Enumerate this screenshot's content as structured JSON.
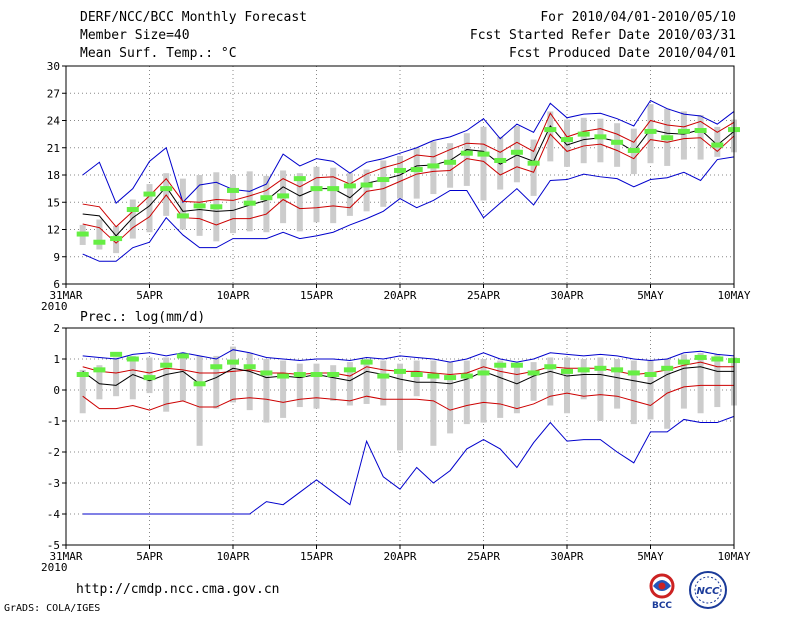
{
  "header": {
    "title": "DERF/NCC/BCC Monthly Forecast",
    "member_size": "Member Size=40",
    "variable": "Mean Surf. Temp.: °C",
    "period": "For 2010/04/01-2010/05/10",
    "started": "Fcst Started Refer Date 2010/03/31",
    "produced": "Fcst Produced Date 2010/04/01"
  },
  "footer": {
    "url": "http://cmdp.ncc.cma.gov.cn",
    "credit": "GrADS: COLA/IGES",
    "logo_left_text": "BCC",
    "logo_right_text": "NCC"
  },
  "colors": {
    "envelope_outer": "#0000cc",
    "envelope_inner": "#cc0000",
    "ensemble_mean": "#000000",
    "median_box": "#66ee44",
    "spread_bar": "#cccccc",
    "grid": "#888888"
  },
  "chart_data": [
    {
      "type": "line",
      "title": "Mean Surf. Temp.: °C",
      "xlim": [
        0,
        40
      ],
      "ylim": [
        6,
        30
      ],
      "yticks": [
        6,
        9,
        12,
        15,
        18,
        21,
        24,
        27,
        30
      ],
      "xticks": [
        {
          "x": 0,
          "label": "31MAR",
          "sub": "2010"
        },
        {
          "x": 5,
          "label": "5APR"
        },
        {
          "x": 10,
          "label": "10APR"
        },
        {
          "x": 15,
          "label": "15APR"
        },
        {
          "x": 20,
          "label": "20APR"
        },
        {
          "x": 25,
          "label": "25APR"
        },
        {
          "x": 30,
          "label": "30APR"
        },
        {
          "x": 35,
          "label": "5MAY"
        },
        {
          "x": 40,
          "label": "10MAY"
        }
      ],
      "x": [
        1,
        2,
        3,
        4,
        5,
        6,
        7,
        8,
        9,
        10,
        11,
        12,
        13,
        14,
        15,
        16,
        17,
        18,
        19,
        20,
        21,
        22,
        23,
        24,
        25,
        26,
        27,
        28,
        29,
        30,
        31,
        32,
        33,
        34,
        35,
        36,
        37,
        38,
        39,
        40
      ],
      "series": [
        {
          "name": "max",
          "role": "outer",
          "values": [
            18.0,
            19.4,
            14.9,
            16.5,
            19.5,
            21.0,
            15.0,
            16.9,
            17.2,
            16.4,
            16.2,
            17.0,
            20.3,
            19.0,
            19.8,
            19.5,
            18.2,
            19.4,
            19.8,
            20.4,
            21.0,
            21.8,
            22.2,
            22.9,
            24.2,
            22.0,
            23.6,
            22.7,
            25.9,
            24.3,
            24.7,
            24.8,
            24.2,
            23.4,
            26.2,
            25.3,
            24.7,
            24.5,
            23.6,
            25.0
          ]
        },
        {
          "name": "upper",
          "role": "inner",
          "values": [
            14.8,
            14.5,
            12.3,
            14.0,
            15.7,
            17.6,
            15.1,
            15.0,
            15.3,
            15.2,
            15.7,
            16.3,
            17.6,
            16.7,
            17.7,
            17.8,
            17.0,
            18.1,
            18.8,
            19.3,
            20.2,
            20.0,
            20.8,
            21.5,
            21.4,
            20.5,
            21.6,
            20.6,
            24.8,
            22.2,
            22.8,
            23.1,
            22.5,
            21.6,
            24.0,
            23.5,
            23.3,
            23.9,
            22.7,
            23.8
          ]
        },
        {
          "name": "mean",
          "role": "mean",
          "values": [
            13.7,
            13.5,
            11.3,
            13.3,
            14.6,
            16.7,
            14.0,
            14.2,
            14.0,
            14.1,
            14.7,
            15.2,
            16.7,
            15.7,
            16.5,
            16.5,
            15.5,
            17.1,
            17.5,
            18.0,
            19.0,
            19.1,
            19.6,
            20.8,
            20.6,
            19.2,
            20.2,
            19.5,
            23.4,
            21.3,
            21.9,
            22.1,
            21.7,
            20.6,
            23.0,
            22.6,
            22.5,
            23.0,
            21.3,
            22.8
          ]
        },
        {
          "name": "lower",
          "role": "inner",
          "values": [
            12.6,
            12.2,
            10.5,
            12.2,
            13.4,
            15.8,
            13.3,
            13.2,
            12.5,
            13.2,
            13.2,
            13.7,
            15.3,
            14.3,
            14.4,
            14.6,
            14.4,
            16.2,
            16.5,
            17.3,
            18.1,
            18.4,
            18.5,
            19.8,
            19.5,
            18.0,
            18.9,
            18.3,
            22.5,
            20.6,
            21.2,
            21.4,
            20.7,
            19.8,
            21.9,
            21.6,
            22.0,
            22.1,
            20.6,
            22.3
          ]
        },
        {
          "name": "min",
          "role": "outer",
          "values": [
            9.3,
            8.5,
            8.5,
            10.0,
            10.6,
            13.3,
            11.4,
            10.0,
            10.0,
            11.0,
            11.0,
            11.0,
            11.7,
            11.0,
            11.3,
            11.7,
            12.5,
            13.2,
            14.0,
            15.4,
            14.4,
            15.2,
            16.3,
            16.3,
            13.3,
            14.9,
            16.5,
            14.7,
            17.4,
            17.5,
            18.1,
            17.8,
            17.6,
            16.7,
            17.5,
            17.7,
            18.3,
            17.4,
            19.7,
            20.0
          ]
        }
      ],
      "median": [
        11.5,
        10.6,
        11.0,
        14.2,
        15.9,
        16.5,
        13.5,
        14.6,
        14.5,
        16.3,
        14.9,
        15.5,
        15.7,
        17.6,
        16.5,
        16.5,
        16.8,
        16.9,
        17.5,
        18.5,
        18.6,
        19.0,
        19.4,
        20.4,
        20.3,
        19.6,
        20.5,
        19.3,
        23.0,
        21.9,
        22.5,
        22.2,
        21.6,
        20.7,
        22.8,
        22.1,
        22.8,
        22.9,
        21.3,
        23.0
      ],
      "spread_low": [
        10.3,
        9.8,
        9.4,
        11.0,
        11.7,
        13.5,
        12.0,
        11.3,
        10.7,
        11.6,
        11.8,
        11.7,
        12.7,
        11.8,
        12.8,
        12.7,
        13.5,
        14.0,
        14.5,
        15.4,
        15.4,
        15.9,
        16.6,
        16.8,
        15.2,
        16.4,
        17.2,
        15.7,
        19.5,
        18.9,
        19.3,
        19.4,
        18.9,
        18.1,
        19.3,
        19.0,
        19.7,
        19.7,
        20.0,
        20.5
      ],
      "spread_high": [
        12.5,
        13.1,
        12.4,
        15.3,
        17.0,
        18.2,
        17.6,
        18.0,
        18.3,
        18.0,
        18.4,
        17.9,
        18.5,
        18.2,
        18.9,
        18.8,
        18.2,
        18.6,
        19.6,
        20.1,
        21.0,
        21.7,
        21.5,
        22.6,
        23.3,
        22.2,
        23.4,
        21.9,
        25.0,
        24.1,
        24.3,
        24.2,
        23.7,
        23.1,
        25.8,
        25.3,
        25.0,
        24.6,
        23.3,
        24.1
      ]
    },
    {
      "type": "line",
      "title": "Prec.: log(mm/d)",
      "xlim": [
        0,
        40
      ],
      "ylim": [
        -5,
        2
      ],
      "yticks": [
        -5,
        -4,
        -3,
        -2,
        -1,
        0,
        1,
        2
      ],
      "xticks": [
        {
          "x": 0,
          "label": "31MAR",
          "sub": "2010"
        },
        {
          "x": 5,
          "label": "5APR"
        },
        {
          "x": 10,
          "label": "10APR"
        },
        {
          "x": 15,
          "label": "15APR"
        },
        {
          "x": 20,
          "label": "20APR"
        },
        {
          "x": 25,
          "label": "25APR"
        },
        {
          "x": 30,
          "label": "30APR"
        },
        {
          "x": 35,
          "label": "5MAY"
        },
        {
          "x": 40,
          "label": "10MAY"
        }
      ],
      "x": [
        1,
        2,
        3,
        4,
        5,
        6,
        7,
        8,
        9,
        10,
        11,
        12,
        13,
        14,
        15,
        16,
        17,
        18,
        19,
        20,
        21,
        22,
        23,
        24,
        25,
        26,
        27,
        28,
        29,
        30,
        31,
        32,
        33,
        34,
        35,
        36,
        37,
        38,
        39,
        40
      ],
      "series": [
        {
          "name": "max",
          "role": "outer",
          "values": [
            1.1,
            1.05,
            1.0,
            1.15,
            1.2,
            1.1,
            1.2,
            1.1,
            1.0,
            1.3,
            1.2,
            1.05,
            1.0,
            0.95,
            1.0,
            1.0,
            0.95,
            1.05,
            1.0,
            1.1,
            1.05,
            1.0,
            0.9,
            1.0,
            1.2,
            1.0,
            0.9,
            1.0,
            1.2,
            1.15,
            1.1,
            1.15,
            1.1,
            1.0,
            0.95,
            1.0,
            1.2,
            1.25,
            1.15,
            1.1
          ]
        },
        {
          "name": "upper",
          "role": "inner",
          "values": [
            0.75,
            0.6,
            0.55,
            0.65,
            0.55,
            0.7,
            0.65,
            0.55,
            0.55,
            0.6,
            0.65,
            0.55,
            0.55,
            0.5,
            0.55,
            0.55,
            0.45,
            0.75,
            0.65,
            0.6,
            0.6,
            0.55,
            0.5,
            0.55,
            0.75,
            0.6,
            0.5,
            0.6,
            0.75,
            0.7,
            0.7,
            0.7,
            0.6,
            0.5,
            0.55,
            0.65,
            0.8,
            0.9,
            0.75,
            0.75
          ]
        },
        {
          "name": "mean",
          "role": "mean",
          "values": [
            0.6,
            0.2,
            0.15,
            0.5,
            0.3,
            0.5,
            0.6,
            0.2,
            0.4,
            0.7,
            0.6,
            0.4,
            0.45,
            0.4,
            0.5,
            0.4,
            0.3,
            0.6,
            0.5,
            0.35,
            0.25,
            0.25,
            0.2,
            0.35,
            0.6,
            0.4,
            0.2,
            0.45,
            0.6,
            0.45,
            0.5,
            0.5,
            0.4,
            0.3,
            0.2,
            0.5,
            0.7,
            0.75,
            0.6,
            0.6
          ]
        },
        {
          "name": "lower",
          "role": "inner",
          "values": [
            -0.2,
            -0.6,
            -0.6,
            -0.5,
            -0.65,
            -0.45,
            -0.35,
            -0.55,
            -0.55,
            -0.3,
            -0.25,
            -0.3,
            -0.4,
            -0.3,
            -0.25,
            -0.3,
            -0.35,
            -0.2,
            -0.3,
            -0.3,
            -0.3,
            -0.35,
            -0.65,
            -0.5,
            -0.4,
            -0.45,
            -0.6,
            -0.45,
            -0.2,
            -0.1,
            -0.2,
            -0.15,
            -0.2,
            -0.35,
            -0.5,
            -0.1,
            0.1,
            0.15,
            0.15,
            0.15
          ]
        },
        {
          "name": "min",
          "role": "outer",
          "values": [
            -4.0,
            -4.0,
            -4.0,
            -4.0,
            -4.0,
            -4.0,
            -4.0,
            -4.0,
            -4.0,
            -4.0,
            -4.0,
            -3.6,
            -3.7,
            -3.3,
            -2.9,
            -3.3,
            -3.7,
            -1.65,
            -2.8,
            -3.2,
            -2.5,
            -3.0,
            -2.6,
            -1.9,
            -1.6,
            -1.9,
            -2.5,
            -1.7,
            -1.05,
            -1.65,
            -1.6,
            -1.6,
            -2.0,
            -2.35,
            -1.35,
            -1.35,
            -0.95,
            -1.05,
            -1.05,
            -0.85
          ]
        }
      ],
      "median": [
        0.5,
        0.65,
        1.15,
        1.0,
        0.4,
        0.8,
        1.1,
        0.2,
        0.75,
        0.9,
        0.75,
        0.55,
        0.45,
        0.5,
        0.5,
        0.5,
        0.65,
        0.9,
        0.45,
        0.6,
        0.5,
        0.45,
        0.4,
        0.45,
        0.55,
        0.8,
        0.8,
        0.55,
        0.75,
        0.6,
        0.65,
        0.7,
        0.65,
        0.55,
        0.5,
        0.7,
        0.9,
        1.05,
        1.0,
        0.95
      ],
      "spread_low": [
        -0.75,
        -0.3,
        -0.2,
        -0.3,
        -0.1,
        -0.7,
        -0.35,
        -1.8,
        -0.6,
        -0.4,
        -0.65,
        -1.05,
        -0.9,
        -0.55,
        -0.6,
        -0.35,
        -0.5,
        -0.45,
        -0.5,
        -1.95,
        -0.2,
        -1.8,
        -1.4,
        -1.1,
        -1.05,
        -0.9,
        -0.75,
        -0.35,
        -0.5,
        -0.75,
        -0.3,
        -1.0,
        -0.6,
        -1.1,
        -0.95,
        -1.25,
        -0.6,
        -0.75,
        -0.55,
        -0.5
      ],
      "spread_high": [
        0.65,
        0.8,
        1.05,
        1.1,
        1.05,
        1.05,
        1.05,
        1.1,
        1.1,
        1.4,
        1.2,
        1.0,
        0.95,
        0.85,
        0.85,
        0.8,
        0.9,
        1.0,
        0.95,
        0.85,
        0.95,
        0.95,
        0.9,
        0.95,
        1.0,
        0.95,
        0.85,
        0.9,
        1.05,
        1.05,
        1.0,
        1.05,
        1.0,
        0.95,
        0.95,
        1.0,
        1.15,
        1.2,
        1.15,
        1.05
      ]
    }
  ]
}
